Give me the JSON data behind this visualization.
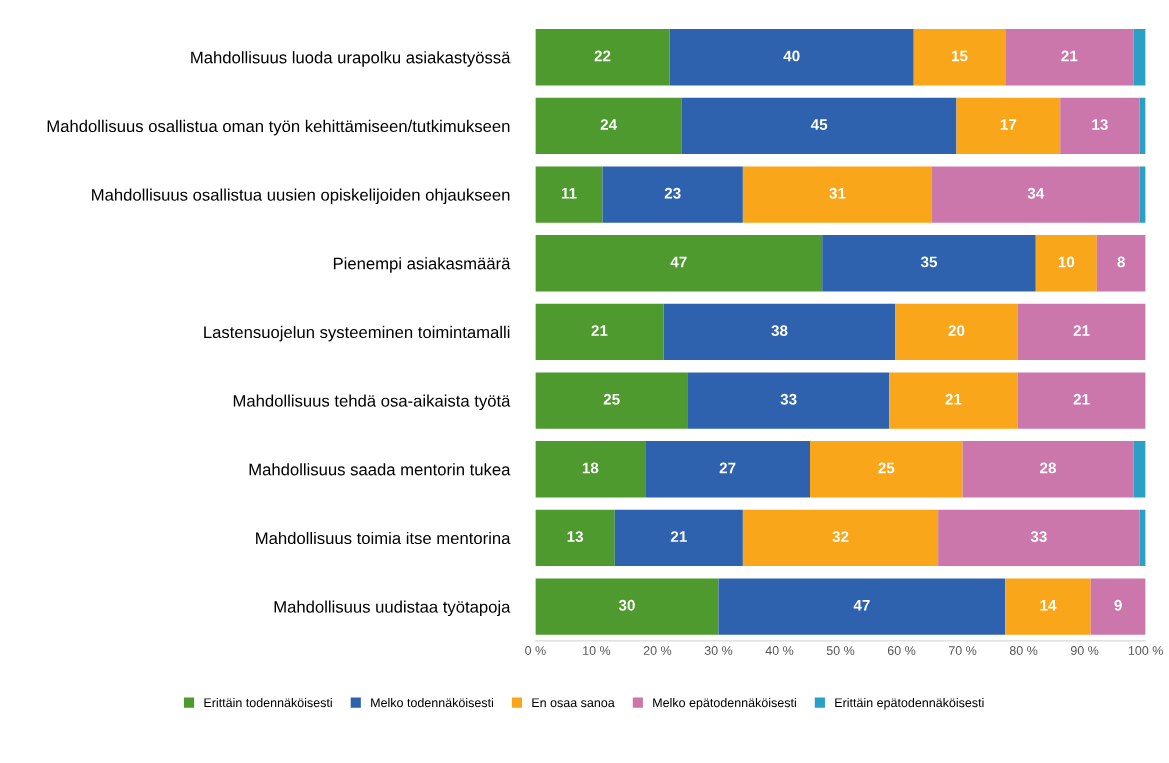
{
  "chart_data": {
    "type": "bar",
    "orientation": "horizontal",
    "stacked": true,
    "categories": [
      "Mahdollisuus luoda urapolku asiakastyössä",
      "Mahdollisuus osallistua oman työn kehittämiseen/tutkimukseen",
      "Mahdollisuus osallistua uusien opiskelijoiden ohjaukseen",
      "Pienempi asiakasmäärä",
      "Lastensuojelun systeeminen toimintamalli",
      "Mahdollisuus tehdä osa-aikaista työtä",
      "Mahdollisuus saada mentorin tukea",
      "Mahdollisuus toimia itse mentorina",
      "Mahdollisuus uudistaa työtapoja"
    ],
    "series": [
      {
        "name": "Erittäin todennäköisesti",
        "color": "#4e9a2f",
        "values": [
          22,
          24,
          11,
          47,
          21,
          25,
          18,
          13,
          30
        ],
        "value_labels": [
          "22",
          "24",
          "11",
          "47",
          "21",
          "25",
          "18",
          "13",
          "30"
        ]
      },
      {
        "name": "Melko todennäköisesti",
        "color": "#2e62ae",
        "values": [
          40,
          45,
          23,
          35,
          38,
          33,
          27,
          21,
          47
        ],
        "value_labels": [
          "40",
          "45",
          "23",
          "35",
          "38",
          "33",
          "27",
          "21",
          "47"
        ]
      },
      {
        "name": "En osaa sanoa",
        "color": "#f9a61a",
        "values": [
          15,
          17,
          31,
          10,
          20,
          21,
          25,
          32,
          14
        ],
        "value_labels": [
          "15",
          "17",
          "31",
          "10",
          "20",
          "21",
          "25",
          "32",
          "14"
        ]
      },
      {
        "name": "Melko epätodennäköisesti",
        "color": "#cc77ab",
        "values": [
          21,
          13,
          34,
          8,
          21,
          21,
          28,
          33,
          9
        ],
        "value_labels": [
          "21",
          "13",
          "34",
          "8",
          "21",
          "21",
          "28",
          "33",
          "9"
        ]
      },
      {
        "name": "Erittäin epätodennäköisesti",
        "color": "#2aa1c4",
        "values": [
          2,
          1,
          1,
          0,
          0,
          0,
          2,
          1,
          0
        ]
      }
    ],
    "xlim": [
      0,
      100
    ],
    "xticks": [
      {
        "value": 0,
        "label": "0 %"
      },
      {
        "value": 10,
        "label": "10 %"
      },
      {
        "value": 20,
        "label": "20 %"
      },
      {
        "value": 30,
        "label": "30 %"
      },
      {
        "value": 40,
        "label": "40 %"
      },
      {
        "value": 50,
        "label": "50 %"
      },
      {
        "value": 60,
        "label": "60 %"
      },
      {
        "value": 70,
        "label": "70 %"
      },
      {
        "value": 80,
        "label": "80 %"
      },
      {
        "value": 90,
        "label": "90 %"
      },
      {
        "value": 100,
        "label": "100 %"
      }
    ],
    "grid": false,
    "legend": "bottom"
  }
}
